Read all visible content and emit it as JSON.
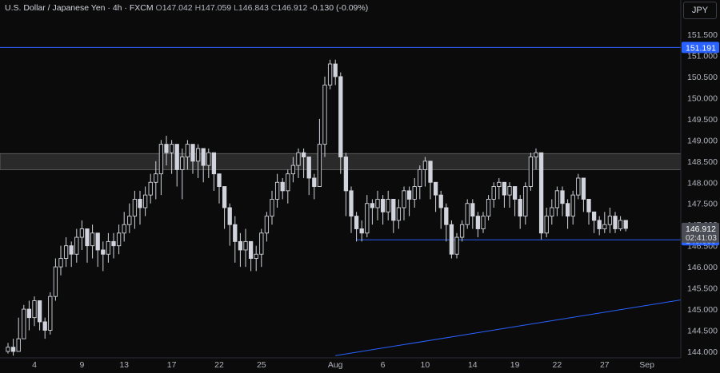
{
  "header": {
    "symbol": "U.S. Dollar / Japanese Yen · 4h · FXCM",
    "open_label": "O",
    "open": "147.042",
    "high_label": "H",
    "high": "147.059",
    "low_label": "L",
    "low": "146.843",
    "close_label": "C",
    "close": "146.912",
    "change": "-0.130 (-0.09%)"
  },
  "currency_button": "JPY",
  "chart_data": {
    "type": "candlestick",
    "title": "U.S. Dollar / Japanese Yen · 4h · FXCM",
    "ylim": [
      143.95,
      151.8
    ],
    "y_ticks": [
      "151.500",
      "151.000",
      "150.500",
      "150.000",
      "149.500",
      "149.000",
      "148.500",
      "148.000",
      "147.500",
      "147.000",
      "146.500",
      "146.000",
      "145.500",
      "145.000",
      "144.500",
      "144.000"
    ],
    "x_ticks": [
      {
        "label": "4",
        "index": 5
      },
      {
        "label": "9",
        "index": 14
      },
      {
        "label": "13",
        "index": 22
      },
      {
        "label": "17",
        "index": 31
      },
      {
        "label": "22",
        "index": 40
      },
      {
        "label": "25",
        "index": 48
      },
      {
        "label": "Aug",
        "index": 62
      },
      {
        "label": "6",
        "index": 71
      },
      {
        "label": "10",
        "index": 79
      },
      {
        "label": "14",
        "index": 88
      },
      {
        "label": "19",
        "index": 96
      },
      {
        "label": "22",
        "index": 104
      },
      {
        "label": "27",
        "index": 113
      },
      {
        "label": "Sep",
        "index": 121
      }
    ],
    "closes": [
      144.1,
      144.0,
      144.3,
      145.0,
      144.8,
      145.2,
      144.7,
      144.5,
      145.3,
      146.0,
      146.2,
      146.5,
      146.3,
      146.7,
      146.9,
      146.5,
      146.8,
      146.4,
      146.3,
      146.6,
      146.5,
      146.8,
      147.0,
      147.2,
      147.6,
      147.4,
      147.7,
      148.0,
      148.2,
      148.9,
      148.7,
      148.9,
      148.3,
      148.6,
      148.9,
      148.5,
      148.8,
      148.4,
      148.7,
      148.2,
      147.9,
      147.4,
      147.0,
      146.6,
      146.4,
      146.6,
      146.2,
      146.3,
      146.8,
      147.2,
      147.6,
      148.0,
      147.8,
      148.2,
      148.4,
      148.7,
      148.6,
      148.1,
      147.9,
      148.9,
      150.3,
      150.8,
      150.5,
      148.6,
      147.8,
      147.2,
      146.9,
      146.8,
      147.5,
      147.4,
      147.6,
      147.3,
      147.6,
      147.1,
      147.4,
      147.8,
      147.6,
      147.9,
      148.3,
      148.5,
      148.0,
      147.7,
      147.4,
      147.0,
      146.3,
      146.7,
      147.0,
      147.5,
      147.2,
      146.9,
      147.2,
      147.6,
      147.9,
      148.0,
      147.7,
      147.9,
      147.6,
      147.2,
      147.9,
      148.6,
      148.7,
      146.8,
      147.2,
      147.4,
      147.8,
      147.5,
      147.2,
      147.7,
      148.1,
      147.6,
      147.3,
      147.1,
      146.9,
      147.0,
      147.2,
      146.9,
      147.1,
      146.91
    ],
    "lows": [
      143.95,
      143.9,
      144.0,
      144.4,
      144.5,
      144.6,
      144.5,
      144.3,
      144.4,
      145.2,
      145.8,
      146.0,
      146.0,
      146.1,
      146.4,
      146.1,
      146.2,
      146.0,
      145.9,
      146.1,
      146.2,
      146.3,
      146.6,
      146.8,
      146.9,
      147.0,
      147.2,
      147.5,
      147.6,
      147.7,
      148.4,
      148.2,
      147.9,
      147.6,
      148.3,
      148.2,
      148.1,
      148.0,
      148.1,
      147.8,
      147.5,
      146.9,
      146.5,
      146.1,
      146.0,
      146.0,
      145.9,
      145.9,
      146.0,
      146.6,
      147.0,
      147.4,
      147.6,
      147.5,
      148.0,
      148.1,
      148.1,
      147.7,
      147.6,
      147.9,
      148.6,
      150.2,
      150.3,
      148.2,
      147.2,
      146.8,
      146.6,
      146.6,
      146.7,
      147.0,
      147.1,
      147.0,
      147.1,
      146.8,
      146.9,
      147.1,
      147.2,
      147.4,
      147.6,
      147.9,
      147.6,
      147.3,
      146.9,
      146.6,
      146.2,
      146.2,
      146.6,
      146.9,
      146.9,
      146.7,
      146.8,
      147.1,
      147.4,
      147.6,
      147.4,
      147.4,
      147.2,
      146.9,
      147.0,
      147.8,
      148.3,
      146.65,
      146.7,
      147.0,
      147.2,
      147.2,
      146.9,
      147.0,
      147.6,
      147.3,
      147.0,
      146.8,
      146.75,
      146.8,
      146.8,
      146.8,
      146.85,
      146.84
    ],
    "highs": [
      144.2,
      144.3,
      144.8,
      145.1,
      145.2,
      145.3,
      145.2,
      144.8,
      145.4,
      146.2,
      146.5,
      146.7,
      146.6,
      146.9,
      147.1,
      146.9,
      147.0,
      146.8,
      146.6,
      146.8,
      146.8,
      147.0,
      147.3,
      147.5,
      147.8,
      147.8,
      147.9,
      148.2,
      148.5,
      149.0,
      149.1,
      149.0,
      148.9,
      148.8,
      149.0,
      148.9,
      148.9,
      148.8,
      148.8,
      148.6,
      148.2,
      147.9,
      147.5,
      147.2,
      146.8,
      146.9,
      146.6,
      146.5,
      146.9,
      147.3,
      147.8,
      148.2,
      148.1,
      148.3,
      148.6,
      148.8,
      148.8,
      148.6,
      148.2,
      149.5,
      150.5,
      150.9,
      150.9,
      150.6,
      148.7,
      147.9,
      147.3,
      147.1,
      147.7,
      147.6,
      147.8,
      147.7,
      147.8,
      147.6,
      147.6,
      147.9,
      147.9,
      148.1,
      148.4,
      148.6,
      148.5,
      148.0,
      147.8,
      147.5,
      147.1,
      146.8,
      147.1,
      147.6,
      147.6,
      147.3,
      147.3,
      147.7,
      148.0,
      148.1,
      148.0,
      148.0,
      147.9,
      147.7,
      148.0,
      148.7,
      148.8,
      148.7,
      147.4,
      147.6,
      147.9,
      147.9,
      147.6,
      147.8,
      148.2,
      148.1,
      147.6,
      147.3,
      147.2,
      147.3,
      147.4,
      147.3,
      147.2,
      147.06
    ],
    "horizontal_lines": [
      {
        "price": 151.191,
        "label": "151.191",
        "color": "#2962ff"
      },
      {
        "price": 146.639,
        "label": "146.639",
        "color": "#2962ff",
        "start_index": 66
      }
    ],
    "resistance_zone": [
      148.3,
      148.68
    ],
    "trendline": {
      "from": [
        62,
        143.9
      ],
      "to": [
        128,
        145.23
      ],
      "color": "#2962ff"
    },
    "last_price": {
      "label": "146.912",
      "countdown": "02:41:03"
    },
    "up_color": "#d1d4dc",
    "down_color": "#d1d4dc",
    "wick_color": "#d1d4dc",
    "zone_color": "#2a2a2a",
    "line_color": "#2962ff"
  }
}
